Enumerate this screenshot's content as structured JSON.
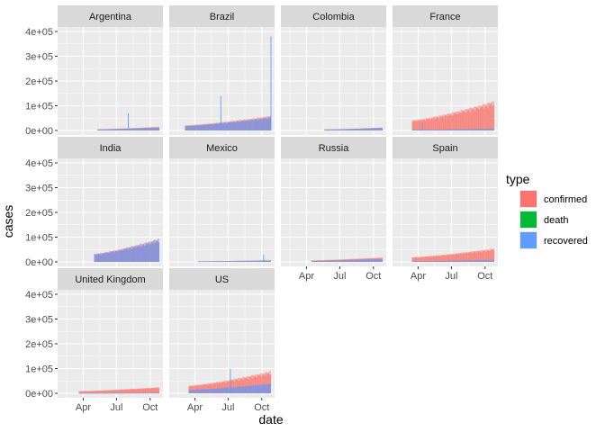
{
  "chart_data": {
    "type": "bar",
    "layout": "facet_wrap 4 columns, 3 rows, stacked daily bars",
    "xlabel": "date",
    "ylabel": "cases",
    "x_range": [
      "2020-01-22",
      "2020-11-05"
    ],
    "x_ticks": [
      {
        "date": "2020-04-01",
        "label": "Apr"
      },
      {
        "date": "2020-07-01",
        "label": "Jul"
      },
      {
        "date": "2020-10-01",
        "label": "Oct"
      }
    ],
    "ylim": [
      0,
      400000
    ],
    "y_ticks": [
      {
        "value": 0,
        "label": "0e+00"
      },
      {
        "value": 100000,
        "label": "1e+05"
      },
      {
        "value": 200000,
        "label": "2e+05"
      },
      {
        "value": 300000,
        "label": "3e+05"
      },
      {
        "value": 400000,
        "label": "4e+05"
      }
    ],
    "legend": {
      "title": "type",
      "position": "right",
      "items": [
        {
          "label": "confirmed",
          "color": "#F8766D"
        },
        {
          "label": "death",
          "color": "#00BA38"
        },
        {
          "label": "recovered",
          "color": "#619CFF"
        }
      ]
    },
    "grid": true,
    "panels": [
      {
        "name": "Argentina",
        "start": "2020-05-10",
        "end": "2020-10-25",
        "peak_confirmed": 15000,
        "peak_recovered": 13000,
        "spikes": [
          {
            "date": "2020-08-01",
            "recovered": 70000
          }
        ]
      },
      {
        "name": "Brazil",
        "start": "2020-03-05",
        "end": "2020-10-25",
        "peak_confirmed": 60000,
        "peak_recovered": 55000,
        "spikes": [
          {
            "date": "2020-06-10",
            "recovered": 140000
          },
          {
            "date": "2020-10-25",
            "recovered": 380000
          }
        ]
      },
      {
        "name": "Colombia",
        "start": "2020-05-20",
        "end": "2020-10-25",
        "peak_confirmed": 12000,
        "peak_recovered": 12000,
        "spikes": []
      },
      {
        "name": "France",
        "start": "2020-03-15",
        "end": "2020-10-25",
        "peak_confirmed": 120000,
        "peak_recovered": 8000,
        "spikes": [
          {
            "date": "2020-04-12",
            "recovered": 30000
          }
        ]
      },
      {
        "name": "India",
        "start": "2020-05-01",
        "end": "2020-10-25",
        "peak_confirmed": 95000,
        "peak_recovered": 95000,
        "spikes": []
      },
      {
        "name": "Mexico",
        "start": "2020-04-10",
        "end": "2020-10-25",
        "peak_confirmed": 7000,
        "peak_recovered": 6000,
        "spikes": [
          {
            "date": "2020-10-05",
            "recovered": 28000
          }
        ]
      },
      {
        "name": "Russia",
        "start": "2020-04-15",
        "end": "2020-10-25",
        "peak_confirmed": 18000,
        "peak_recovered": 12000,
        "spikes": []
      },
      {
        "name": "Spain",
        "start": "2020-03-15",
        "end": "2020-10-25",
        "peak_confirmed": 55000,
        "peak_recovered": 8000,
        "spikes": []
      },
      {
        "name": "United Kingdom",
        "start": "2020-03-20",
        "end": "2020-10-25",
        "peak_confirmed": 25000,
        "peak_recovered": 2000,
        "spikes": []
      },
      {
        "name": "US",
        "start": "2020-03-15",
        "end": "2020-10-25",
        "peak_confirmed": 90000,
        "peak_recovered": 40000,
        "spikes": [
          {
            "date": "2020-07-06",
            "recovered": 100000
          }
        ]
      }
    ]
  }
}
